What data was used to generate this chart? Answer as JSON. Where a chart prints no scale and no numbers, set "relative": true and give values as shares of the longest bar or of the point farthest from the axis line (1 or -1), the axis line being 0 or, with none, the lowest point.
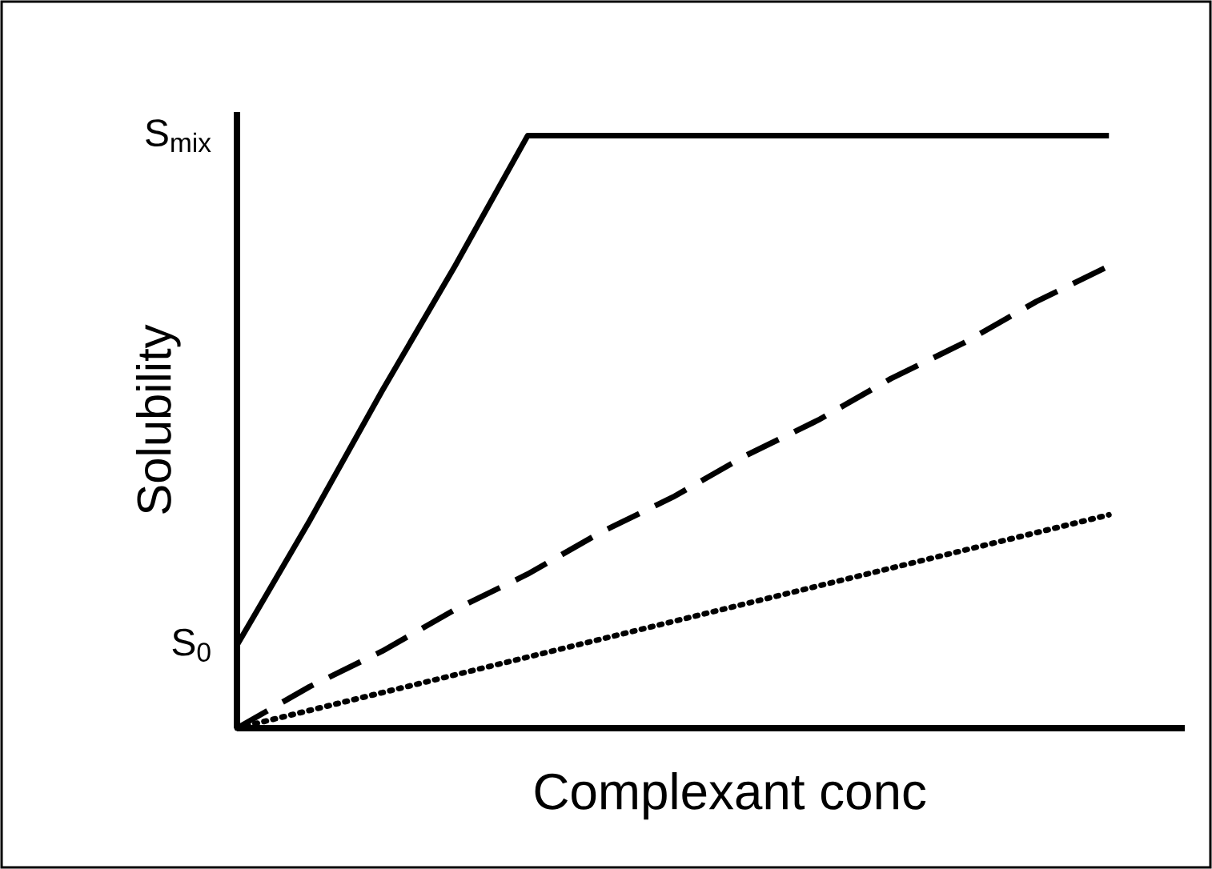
{
  "chart_data": {
    "type": "line",
    "relative": true,
    "xlabel": "Complexant conc",
    "ylabel": "Solubility",
    "marker": "none",
    "categories": [
      null,
      null,
      null,
      null,
      null,
      null,
      null,
      null,
      null,
      null,
      null,
      null,
      null
    ],
    "annotations": [
      "S$_{mix}$",
      "S$_{0}$"
    ],
    "series": [
      {
        "color": "#000000",
        "line_style": "solid",
        "values": [
          0.14,
          0.35,
          0.57,
          0.78,
          1,
          1,
          1,
          1,
          1,
          1,
          1,
          1,
          1
        ]
      },
      {
        "color": "#000000",
        "line_style": "dashed",
        "values": [
          0,
          0.07,
          0.13,
          0.2,
          0.26,
          0.33,
          0.39,
          0.46,
          0.52,
          0.59,
          0.65,
          0.72,
          0.78
        ]
      },
      {
        "color": "#000000",
        "line_style": "dotted",
        "values": [
          0,
          0.03,
          0.06,
          0.09,
          0.12,
          0.15,
          0.18,
          0.21,
          0.24,
          0.27,
          0.3,
          0.33,
          0.36
        ]
      }
    ]
  }
}
